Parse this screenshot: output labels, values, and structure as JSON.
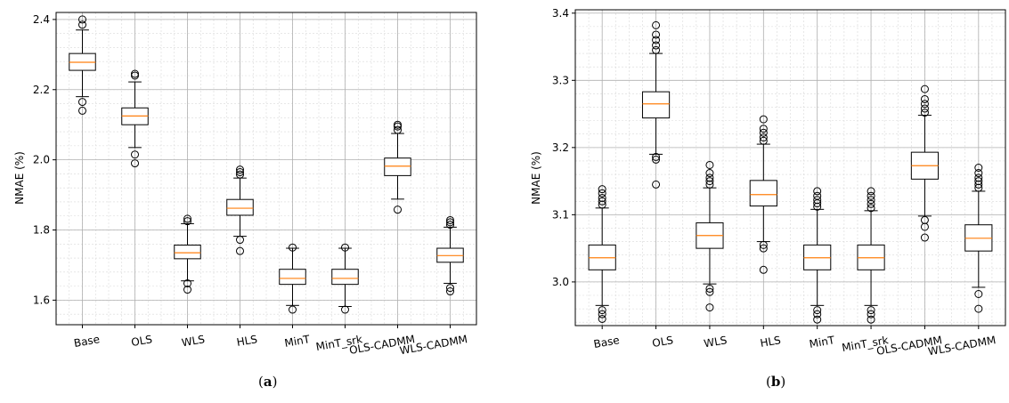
{
  "colors": {
    "box": "#000000",
    "median": "#ff7f0e",
    "grid_major": "#b0b0b0",
    "grid_minor": "#d9d9d9"
  },
  "captions": [
    {
      "open": "(",
      "letter": "a",
      "close": ")"
    },
    {
      "open": "(",
      "letter": "b",
      "close": ")"
    }
  ],
  "chart_data": [
    {
      "type": "box",
      "ylabel": "NMAE (%)",
      "xlabel": "",
      "title": "",
      "ylim": [
        1.53,
        2.42
      ],
      "yticks": [
        1.6,
        1.8,
        2.0,
        2.2,
        2.4
      ],
      "ytick_labels": [
        "1.6",
        "1.8",
        "2.0",
        "2.2",
        "2.4"
      ],
      "grid": true,
      "categories": [
        "Base",
        "OLS",
        "WLS",
        "HLS",
        "MinT",
        "MinT_srk",
        "OLS-CADMM",
        "WLS-CADMM"
      ],
      "boxes": [
        {
          "whislo": 2.18,
          "q1": 2.255,
          "med": 2.278,
          "q3": 2.303,
          "whishi": 2.37,
          "fliers": [
            2.14,
            2.165,
            2.385,
            2.4
          ]
        },
        {
          "whislo": 2.035,
          "q1": 2.1,
          "med": 2.125,
          "q3": 2.148,
          "whishi": 2.222,
          "fliers": [
            1.99,
            2.015,
            2.24,
            2.245
          ]
        },
        {
          "whislo": 1.655,
          "q1": 1.718,
          "med": 1.735,
          "q3": 1.757,
          "whishi": 1.818,
          "fliers": [
            1.63,
            1.648,
            1.825,
            1.832
          ]
        },
        {
          "whislo": 1.782,
          "q1": 1.842,
          "med": 1.862,
          "q3": 1.887,
          "whishi": 1.948,
          "fliers": [
            1.74,
            1.772,
            1.958,
            1.965,
            1.972
          ]
        },
        {
          "whislo": 1.585,
          "q1": 1.645,
          "med": 1.662,
          "q3": 1.688,
          "whishi": 1.748,
          "fliers": [
            1.573,
            1.75
          ]
        },
        {
          "whislo": 1.582,
          "q1": 1.645,
          "med": 1.662,
          "q3": 1.688,
          "whishi": 1.748,
          "fliers": [
            1.573,
            1.75
          ]
        },
        {
          "whislo": 1.888,
          "q1": 1.955,
          "med": 1.982,
          "q3": 2.005,
          "whishi": 2.075,
          "fliers": [
            1.858,
            2.085,
            2.095,
            2.1
          ]
        },
        {
          "whislo": 1.648,
          "q1": 1.708,
          "med": 1.727,
          "q3": 1.748,
          "whishi": 1.808,
          "fliers": [
            1.625,
            1.635,
            1.815,
            1.822,
            1.828
          ]
        }
      ]
    },
    {
      "type": "box",
      "ylabel": "NMAE (%)",
      "xlabel": "",
      "title": "",
      "ylim": [
        2.935,
        3.405
      ],
      "yticks": [
        3.0,
        3.1,
        3.2,
        3.3,
        3.4
      ],
      "ytick_labels": [
        "3.0",
        "3.1",
        "3.2",
        "3.3",
        "3.4"
      ],
      "grid": true,
      "categories": [
        "Base",
        "OLS",
        "WLS",
        "HLS",
        "MinT",
        "MinT_srk",
        "OLS-CADMM",
        "WLS-CADMM"
      ],
      "boxes": [
        {
          "whislo": 2.965,
          "q1": 3.018,
          "med": 3.036,
          "q3": 3.055,
          "whishi": 3.11,
          "fliers": [
            2.945,
            2.952,
            2.958,
            3.115,
            3.12,
            3.125,
            3.132,
            3.138
          ]
        },
        {
          "whislo": 3.19,
          "q1": 3.244,
          "med": 3.265,
          "q3": 3.283,
          "whishi": 3.34,
          "fliers": [
            3.145,
            3.182,
            3.186,
            3.345,
            3.352,
            3.36,
            3.368,
            3.382
          ]
        },
        {
          "whislo": 2.997,
          "q1": 3.05,
          "med": 3.069,
          "q3": 3.088,
          "whishi": 3.14,
          "fliers": [
            2.962,
            2.985,
            2.99,
            3.145,
            3.15,
            3.155,
            3.162,
            3.174
          ]
        },
        {
          "whislo": 3.06,
          "q1": 3.113,
          "med": 3.13,
          "q3": 3.151,
          "whishi": 3.205,
          "fliers": [
            3.018,
            3.05,
            3.055,
            3.21,
            3.215,
            3.222,
            3.228,
            3.242
          ]
        },
        {
          "whislo": 2.965,
          "q1": 3.018,
          "med": 3.036,
          "q3": 3.055,
          "whishi": 3.108,
          "fliers": [
            2.944,
            2.952,
            2.958,
            3.112,
            3.117,
            3.122,
            3.128,
            3.135
          ]
        },
        {
          "whislo": 2.965,
          "q1": 3.018,
          "med": 3.036,
          "q3": 3.055,
          "whishi": 3.106,
          "fliers": [
            2.944,
            2.952,
            2.958,
            3.11,
            3.116,
            3.122,
            3.128,
            3.135
          ]
        },
        {
          "whislo": 3.098,
          "q1": 3.153,
          "med": 3.173,
          "q3": 3.193,
          "whishi": 3.248,
          "fliers": [
            3.066,
            3.082,
            3.092,
            3.252,
            3.258,
            3.265,
            3.272,
            3.287
          ]
        },
        {
          "whislo": 2.992,
          "q1": 3.046,
          "med": 3.065,
          "q3": 3.085,
          "whishi": 3.135,
          "fliers": [
            2.96,
            2.982,
            3.14,
            3.145,
            3.15,
            3.155,
            3.162,
            3.17
          ]
        }
      ]
    }
  ]
}
